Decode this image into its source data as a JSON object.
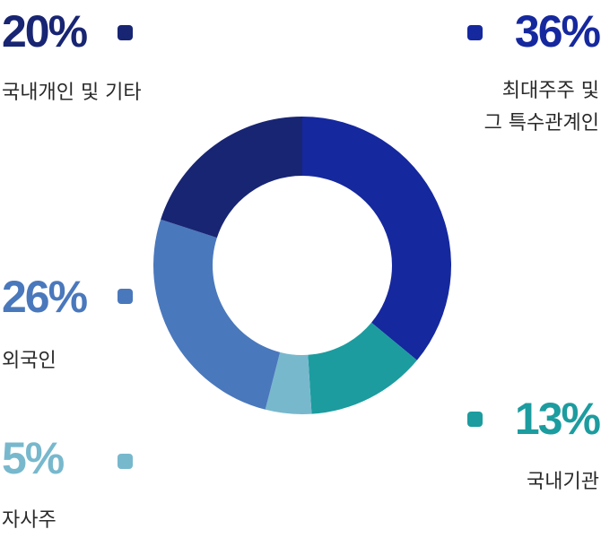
{
  "chart_data": {
    "type": "pie",
    "donut": true,
    "slices": [
      {
        "label": "최대주주 및 그 특수관계인",
        "value": 36,
        "display": "36%",
        "color": "#15289e"
      },
      {
        "label": "국내기관",
        "value": 13,
        "display": "13%",
        "color": "#1c9c9f"
      },
      {
        "label": "자사주",
        "value": 5,
        "display": "5%",
        "color": "#78b8cd"
      },
      {
        "label": "외국인",
        "value": 26,
        "display": "26%",
        "color": "#4a78bc"
      },
      {
        "label": "국내개인 및 기타",
        "value": 20,
        "display": "20%",
        "color": "#182573"
      }
    ]
  },
  "labels": {
    "major_line1": "최대주주 및",
    "major_line2": "그 특수관계인"
  }
}
